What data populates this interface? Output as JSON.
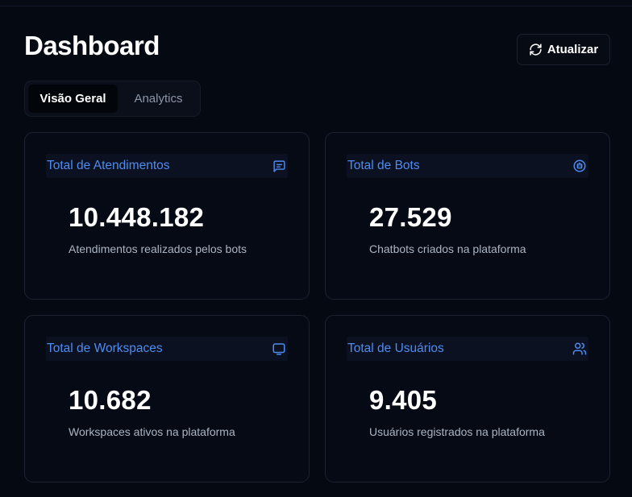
{
  "page_title": "Dashboard",
  "refresh_button": {
    "label": "Atualizar",
    "icon": "refresh-icon"
  },
  "tabs": [
    {
      "label": "Visão Geral",
      "active": true
    },
    {
      "label": "Analytics",
      "active": false
    }
  ],
  "cards": [
    {
      "title": "Total de Atendimentos",
      "value": "10.448.182",
      "description": "Atendimentos realizados pelos bots",
      "icon": "message-square-icon"
    },
    {
      "title": "Total de Bots",
      "value": "27.529",
      "description": "Chatbots criados na plataforma",
      "icon": "bot-icon"
    },
    {
      "title": "Total de Workspaces",
      "value": "10.682",
      "description": "Workspaces ativos na plataforma",
      "icon": "monitor-icon"
    },
    {
      "title": "Total de Usuários",
      "value": "9.405",
      "description": "Usuários registrados na plataforma",
      "icon": "users-icon"
    }
  ],
  "colors": {
    "background": "#050912",
    "accent": "#4f8cf0",
    "card_border": "#1b2331",
    "muted_text": "#aab4c3"
  }
}
